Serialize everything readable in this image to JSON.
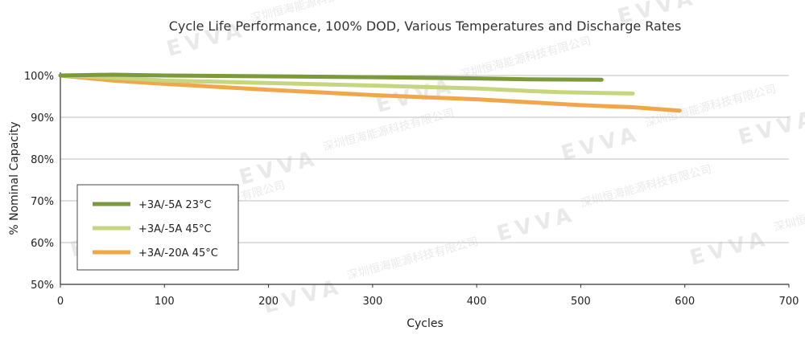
{
  "chart_data": {
    "type": "line",
    "title": "Cycle Life Performance, 100% DOD, Various Temperatures and Discharge Rates",
    "xlabel": "Cycles",
    "ylabel": "% Nominal Capacity",
    "xlim": [
      0,
      700
    ],
    "ylim": [
      50,
      100
    ],
    "x_ticks": [
      0,
      100,
      200,
      300,
      400,
      500,
      600,
      700
    ],
    "x_tick_labels": [
      "0",
      "100",
      "200",
      "300",
      "400",
      "500",
      "600",
      "700"
    ],
    "y_ticks": [
      50,
      60,
      70,
      80,
      90,
      100
    ],
    "y_tick_labels": [
      "50%",
      "60%",
      "70%",
      "80%",
      "90%",
      "100%"
    ],
    "grid": "horizontal",
    "legend_position": "lower-left",
    "series": [
      {
        "name": "+3A/-5A 23°C",
        "color": "#7a9a3c",
        "points": [
          [
            0,
            100
          ],
          [
            50,
            100.2
          ],
          [
            100,
            100
          ],
          [
            200,
            99.8
          ],
          [
            300,
            99.6
          ],
          [
            400,
            99.3
          ],
          [
            450,
            99.1
          ],
          [
            520,
            99
          ]
        ]
      },
      {
        "name": "+3A/-5A 45°C",
        "color": "#c5d67f",
        "points": [
          [
            0,
            100
          ],
          [
            50,
            99.5
          ],
          [
            100,
            98.8
          ],
          [
            200,
            98.2
          ],
          [
            300,
            97.6
          ],
          [
            400,
            96.9
          ],
          [
            450,
            96.3
          ],
          [
            480,
            96
          ],
          [
            520,
            95.8
          ],
          [
            550,
            95.7
          ]
        ]
      },
      {
        "name": "+3A/-20A 45°C",
        "color": "#f2a64a",
        "points": [
          [
            0,
            100
          ],
          [
            50,
            98.8
          ],
          [
            100,
            98
          ],
          [
            200,
            96.6
          ],
          [
            300,
            95.3
          ],
          [
            400,
            94.3
          ],
          [
            450,
            93.6
          ],
          [
            500,
            92.9
          ],
          [
            550,
            92.4
          ],
          [
            595,
            91.6
          ]
        ]
      }
    ]
  },
  "watermark": {
    "logo_text": "EVVA",
    "company_text": "深圳恒海能源科技有限公司"
  }
}
